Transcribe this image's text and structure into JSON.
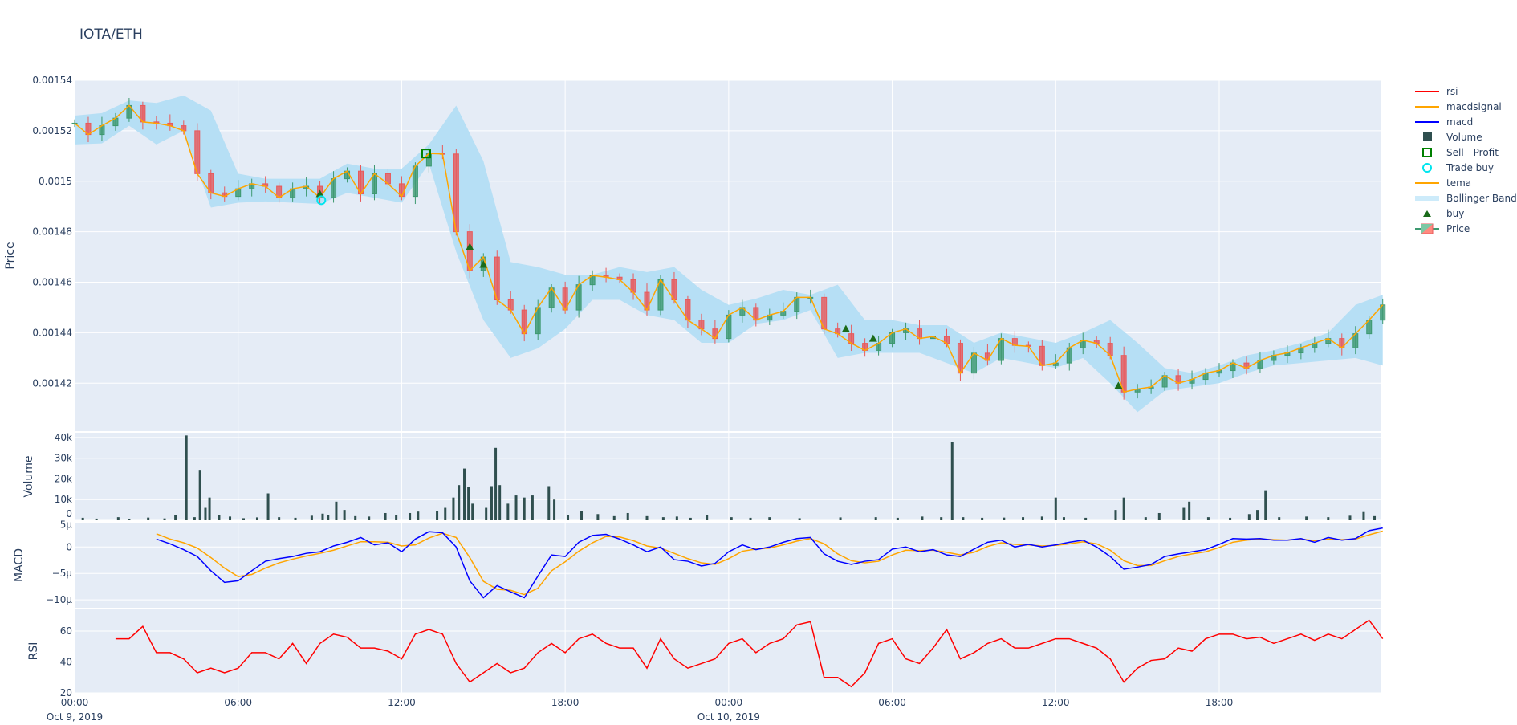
{
  "title": "IOTA/ETH",
  "colors": {
    "increasing": "#3D9970",
    "decreasing": "#E8595B",
    "tema": "#FFA500",
    "macd": "#0000FF",
    "macdsignal": "#FFA500",
    "rsi": "#FF0000",
    "volume": "#2F4F4F",
    "bollinger": "#B6DFF5",
    "buy": "#1A6B1A",
    "sell": "#008000",
    "trade_buy": "#00E5EE",
    "plot_bg": "#E5ECF6"
  },
  "legend": [
    {
      "label": "rsi",
      "icon": "line",
      "color": "#FF0000"
    },
    {
      "label": "macdsignal",
      "icon": "line",
      "color": "#FFA500"
    },
    {
      "label": "macd",
      "icon": "line",
      "color": "#0000FF"
    },
    {
      "label": "Volume",
      "icon": "square-filled",
      "color": "#2F4F4F"
    },
    {
      "label": "Sell - Profit",
      "icon": "square-open",
      "color": "#008000"
    },
    {
      "label": "Trade buy",
      "icon": "circle-open",
      "color": "#00E5EE"
    },
    {
      "label": "tema",
      "icon": "line",
      "color": "#FFA500"
    },
    {
      "label": "Bollinger Band",
      "icon": "band",
      "color": "#CDEBFA"
    },
    {
      "label": "buy",
      "icon": "triangle-up",
      "color": "#1A6B1A"
    },
    {
      "label": "Price",
      "icon": "candlestick",
      "color": "#3D9970"
    }
  ],
  "x_axis": {
    "start": "2019-10-09 00:00",
    "end": "2019-10-10 23:55",
    "ticks": [
      {
        "label": "00:00",
        "sub": "Oct 9, 2019",
        "hour": 0
      },
      {
        "label": "06:00",
        "sub": "",
        "hour": 6
      },
      {
        "label": "12:00",
        "sub": "",
        "hour": 12
      },
      {
        "label": "18:00",
        "sub": "",
        "hour": 18
      },
      {
        "label": "00:00",
        "sub": "Oct 10, 2019",
        "hour": 24
      },
      {
        "label": "06:00",
        "sub": "",
        "hour": 30
      },
      {
        "label": "12:00",
        "sub": "",
        "hour": 36
      },
      {
        "label": "18:00",
        "sub": "",
        "hour": 42
      }
    ]
  },
  "chart_data": [
    {
      "type": "candlestick",
      "ylabel": "Price",
      "ylim": [
        0.001401,
        0.00154
      ],
      "yticks": [
        "0.00142",
        "0.00144",
        "0.00146",
        "0.00148",
        "0.0015",
        "0.00152",
        "0.00154"
      ],
      "step_minutes": 30,
      "close": [
        0.001523,
        0.0015185,
        0.001522,
        0.001525,
        0.00153,
        0.0015235,
        0.001523,
        0.001522,
        0.00152,
        0.001503,
        0.0014954,
        0.001494,
        0.001497,
        0.001499,
        0.001498,
        0.0014935,
        0.001497,
        0.001498,
        0.0014935,
        0.001501,
        0.001504,
        0.001495,
        0.001503,
        0.001499,
        0.001494,
        0.001506,
        0.001511,
        0.0015108,
        0.00148,
        0.0014646,
        0.00147,
        0.001453,
        0.001449,
        0.0014396,
        0.00145,
        0.0014577,
        0.001449,
        0.001459,
        0.0014627,
        0.001462,
        0.001461,
        0.001456,
        0.001449,
        0.001461,
        0.001453,
        0.001445,
        0.0014415,
        0.0014377,
        0.001447,
        0.00145,
        0.001445,
        0.001447,
        0.0014485,
        0.001454,
        0.001454,
        0.0014415,
        0.0014396,
        0.0014358,
        0.001433,
        0.0014358,
        0.00144,
        0.0014415,
        0.0014377,
        0.0014385,
        0.0014358,
        0.001424,
        0.0014319,
        0.001429,
        0.0014377,
        0.001435,
        0.0014346,
        0.001427,
        0.001428,
        0.001434,
        0.001437,
        0.0014358,
        0.001431,
        0.0014165,
        0.0014177,
        0.0014185,
        0.001423,
        0.00142,
        0.0014215,
        0.001424,
        0.001425,
        0.001428,
        0.001426,
        0.001429,
        0.001431,
        0.001432,
        0.001434,
        0.0014358,
        0.0014377,
        0.001434,
        0.0014396,
        0.001445,
        0.001451
      ],
      "tema": [
        0.001523,
        0.0015185,
        0.001522,
        0.001525,
        0.00153,
        0.0015235,
        0.001523,
        0.001522,
        0.00152,
        0.001503,
        0.0014954,
        0.001494,
        0.001497,
        0.001499,
        0.001498,
        0.0014935,
        0.001497,
        0.001498,
        0.0014935,
        0.001501,
        0.001504,
        0.001495,
        0.001503,
        0.001499,
        0.001494,
        0.001506,
        0.001511,
        0.0015108,
        0.00148,
        0.0014646,
        0.00147,
        0.001453,
        0.001449,
        0.0014396,
        0.00145,
        0.0014577,
        0.001449,
        0.001459,
        0.0014627,
        0.001462,
        0.001461,
        0.001456,
        0.001449,
        0.001461,
        0.001453,
        0.001445,
        0.0014415,
        0.0014377,
        0.001447,
        0.00145,
        0.001445,
        0.001447,
        0.0014485,
        0.001454,
        0.001454,
        0.0014415,
        0.0014396,
        0.0014358,
        0.001433,
        0.0014358,
        0.00144,
        0.0014415,
        0.0014377,
        0.0014385,
        0.0014358,
        0.001424,
        0.0014319,
        0.001429,
        0.0014377,
        0.001435,
        0.0014346,
        0.001427,
        0.001428,
        0.001434,
        0.001437,
        0.0014358,
        0.001431,
        0.0014165,
        0.0014177,
        0.0014185,
        0.001423,
        0.00142,
        0.0014215,
        0.001424,
        0.001425,
        0.001428,
        0.001426,
        0.001429,
        0.001431,
        0.001432,
        0.001434,
        0.0014358,
        0.0014377,
        0.001434,
        0.0014396,
        0.001445,
        0.001451
      ],
      "bollinger_step_minutes": 60,
      "bb_upper": [
        0.001526,
        0.001527,
        0.001532,
        0.001531,
        0.001534,
        0.001528,
        0.001503,
        0.001501,
        0.001501,
        0.001501,
        0.001507,
        0.001505,
        0.001505,
        0.0015146,
        0.00153,
        0.001508,
        0.001468,
        0.001466,
        0.001463,
        0.001463,
        0.001466,
        0.001464,
        0.001466,
        0.001457,
        0.001451,
        0.0014535,
        0.001457,
        0.001455,
        0.001459,
        0.001445,
        0.001445,
        0.001443,
        0.001443,
        0.001436,
        0.00144,
        0.001438,
        0.001436,
        0.00144,
        0.001445,
        0.001436,
        0.001426,
        0.001424,
        0.001427,
        0.001431,
        0.001433,
        0.001436,
        0.00144,
        0.001451,
        0.001455
      ],
      "bb_lower": [
        0.0015146,
        0.001515,
        0.001522,
        0.0015146,
        0.00152,
        0.0014896,
        0.0014915,
        0.001492,
        0.0014915,
        0.001491,
        0.0014954,
        0.0014935,
        0.0014915,
        0.001507,
        0.001472,
        0.001445,
        0.00143,
        0.0014338,
        0.0014415,
        0.001453,
        0.001453,
        0.001447,
        0.001445,
        0.001436,
        0.001436,
        0.0014435,
        0.001445,
        0.001449,
        0.00143,
        0.001432,
        0.001432,
        0.001432,
        0.001428,
        0.001424,
        0.00143,
        0.001428,
        0.001426,
        0.00143,
        0.00142,
        0.0014085,
        0.001417,
        0.0014185,
        0.00142,
        0.001424,
        0.001427,
        0.001428,
        0.001429,
        0.00143,
        0.001427
      ],
      "buy": [
        [
          9.0,
          0.001495
        ],
        [
          14.5,
          0.001474
        ],
        [
          15.0,
          0.001467
        ],
        [
          28.3,
          0.0014415
        ],
        [
          29.3,
          0.0014377
        ],
        [
          38.3,
          0.001419
        ]
      ],
      "sell_profit": [
        [
          12.9,
          0.001511
        ]
      ],
      "trade_buy": [
        [
          9.05,
          0.0014925
        ]
      ]
    },
    {
      "type": "bar",
      "ylabel": "Volume",
      "ylim": [
        0,
        42300
      ],
      "yticks": [
        "0",
        "10k",
        "20k",
        "30k",
        "40k"
      ],
      "bars": [
        [
          0.3,
          1200
        ],
        [
          0.8,
          800
        ],
        [
          1.6,
          1500
        ],
        [
          2.0,
          700
        ],
        [
          2.7,
          1300
        ],
        [
          3.3,
          900
        ],
        [
          3.7,
          2600
        ],
        [
          4.1,
          41000
        ],
        [
          4.4,
          1500
        ],
        [
          4.6,
          24000
        ],
        [
          4.8,
          6000
        ],
        [
          4.95,
          11000
        ],
        [
          5.3,
          2500
        ],
        [
          5.7,
          1800
        ],
        [
          6.2,
          1000
        ],
        [
          6.7,
          1400
        ],
        [
          7.1,
          13000
        ],
        [
          7.5,
          1500
        ],
        [
          8.1,
          1200
        ],
        [
          8.7,
          2200
        ],
        [
          9.1,
          3200
        ],
        [
          9.3,
          2500
        ],
        [
          9.6,
          9000
        ],
        [
          9.9,
          5000
        ],
        [
          10.3,
          2000
        ],
        [
          10.8,
          1800
        ],
        [
          11.4,
          3500
        ],
        [
          11.8,
          2600
        ],
        [
          12.3,
          3500
        ],
        [
          12.6,
          4200
        ],
        [
          13.3,
          4500
        ],
        [
          13.6,
          6000
        ],
        [
          13.9,
          11000
        ],
        [
          14.1,
          17000
        ],
        [
          14.3,
          25000
        ],
        [
          14.45,
          16000
        ],
        [
          14.6,
          8000
        ],
        [
          15.1,
          6000
        ],
        [
          15.3,
          16500
        ],
        [
          15.45,
          35000
        ],
        [
          15.6,
          17000
        ],
        [
          15.9,
          8000
        ],
        [
          16.2,
          12000
        ],
        [
          16.5,
          11000
        ],
        [
          16.8,
          12000
        ],
        [
          17.4,
          16500
        ],
        [
          17.6,
          10000
        ],
        [
          18.1,
          2500
        ],
        [
          18.6,
          4500
        ],
        [
          19.2,
          3000
        ],
        [
          19.8,
          2000
        ],
        [
          20.3,
          3500
        ],
        [
          21.0,
          2000
        ],
        [
          21.6,
          1500
        ],
        [
          22.1,
          1800
        ],
        [
          22.6,
          1200
        ],
        [
          23.2,
          2500
        ],
        [
          24.1,
          1500
        ],
        [
          24.8,
          1200
        ],
        [
          25.5,
          1500
        ],
        [
          26.6,
          1000
        ],
        [
          28.1,
          1400
        ],
        [
          29.4,
          1500
        ],
        [
          30.2,
          1200
        ],
        [
          31.1,
          1800
        ],
        [
          31.8,
          1500
        ],
        [
          32.2,
          38000
        ],
        [
          32.6,
          1500
        ],
        [
          33.3,
          1200
        ],
        [
          34.1,
          1300
        ],
        [
          34.8,
          1500
        ],
        [
          35.5,
          1800
        ],
        [
          36.0,
          11000
        ],
        [
          36.3,
          1500
        ],
        [
          37.1,
          1200
        ],
        [
          38.2,
          5000
        ],
        [
          38.5,
          11000
        ],
        [
          39.3,
          1500
        ],
        [
          39.8,
          3500
        ],
        [
          40.7,
          6000
        ],
        [
          40.9,
          9000
        ],
        [
          41.6,
          1500
        ],
        [
          42.4,
          1200
        ],
        [
          43.1,
          3000
        ],
        [
          43.4,
          5000
        ],
        [
          43.7,
          14500
        ],
        [
          44.2,
          1500
        ],
        [
          45.2,
          1800
        ],
        [
          46.0,
          1500
        ],
        [
          46.8,
          2200
        ],
        [
          47.3,
          4000
        ],
        [
          47.7,
          2000
        ]
      ]
    },
    {
      "type": "line",
      "ylabel": "MACD",
      "ylim": [
        -11.5,
        4.6
      ],
      "unit": "µ",
      "yticks": [
        "−10µ",
        "−5µ",
        "0",
        "5µ"
      ],
      "x_start_hour": 3,
      "step_minutes": 30,
      "macd": [
        1.5,
        0.6,
        -0.5,
        -1.8,
        -4.5,
        -6.7,
        -6.4,
        -4.5,
        -2.7,
        -2.2,
        -1.8,
        -1.2,
        -0.9,
        0.2,
        0.9,
        1.8,
        0.4,
        0.8,
        -0.9,
        1.5,
        2.9,
        2.7,
        0,
        -6.4,
        -9.6,
        -7.3,
        -8.5,
        -9.6,
        -5.5,
        -1.5,
        -1.8,
        0.9,
        2.2,
        2.4,
        1.5,
        0.4,
        -0.9,
        0,
        -2.4,
        -2.7,
        -3.6,
        -3.1,
        -0.9,
        0.4,
        -0.5,
        0,
        0.9,
        1.6,
        1.8,
        -1.3,
        -2.7,
        -3.3,
        -2.7,
        -2.4,
        -0.4,
        0,
        -0.9,
        -0.5,
        -1.5,
        -1.8,
        -0.4,
        0.9,
        1.3,
        0,
        0.5,
        0,
        0.4,
        0.9,
        1.3,
        0,
        -1.8,
        -4.2,
        -3.8,
        -3.3,
        -1.8,
        -1.3,
        -0.9,
        -0.5,
        0.5,
        1.6,
        1.5,
        1.6,
        1.3,
        1.3,
        1.6,
        0.9,
        1.8,
        1.3,
        1.6,
        3.1,
        3.6
      ],
      "macdsignal": [
        2.5,
        1.5,
        0.8,
        -0.2,
        -2,
        -4,
        -5.6,
        -5.2,
        -4,
        -3,
        -2.3,
        -1.7,
        -1.2,
        -0.6,
        0.2,
        1,
        1,
        0.9,
        0.2,
        0.4,
        1.7,
        2.6,
        1.8,
        -2,
        -6.5,
        -8,
        -8.2,
        -9,
        -7.8,
        -4.5,
        -2.8,
        -0.8,
        0.8,
        2,
        1.9,
        1.2,
        0.2,
        -0.2,
        -1.2,
        -2.2,
        -3,
        -3.3,
        -2.2,
        -0.8,
        -0.4,
        -0.2,
        0.4,
        1.1,
        1.6,
        0.6,
        -1.3,
        -2.6,
        -3,
        -2.7,
        -1.5,
        -0.6,
        -0.7,
        -0.6,
        -1,
        -1.5,
        -1,
        0.1,
        0.8,
        0.5,
        0.4,
        0.2,
        0.3,
        0.6,
        1,
        0.6,
        -0.6,
        -2.6,
        -3.5,
        -3.5,
        -2.6,
        -1.8,
        -1.3,
        -0.9,
        -0.1,
        0.9,
        1.3,
        1.5,
        1.4,
        1.3,
        1.5,
        1.2,
        1.5,
        1.4,
        1.5,
        2.3,
        3
      ]
    },
    {
      "type": "line",
      "ylabel": "RSI",
      "ylim": [
        20,
        74
      ],
      "yticks": [
        "20",
        "40",
        "60"
      ],
      "x_start_hour": 1.5,
      "step_minutes": 30,
      "rsi": [
        55,
        55,
        63,
        46,
        46,
        42,
        33,
        36,
        33,
        36,
        46,
        46,
        42,
        52,
        39,
        52,
        58,
        56,
        49,
        49,
        47,
        42,
        58,
        61,
        58,
        39,
        27,
        33,
        39,
        33,
        36,
        46,
        52,
        46,
        55,
        58,
        52,
        49,
        49,
        36,
        55,
        42,
        36,
        39,
        42,
        52,
        55,
        46,
        52,
        55,
        64,
        66,
        30,
        30,
        24,
        33,
        52,
        55,
        42,
        39,
        49,
        61,
        42,
        46,
        52,
        55,
        49,
        49,
        52,
        55,
        55,
        52,
        49,
        42,
        27,
        36,
        41,
        42,
        49,
        47,
        55,
        58,
        58,
        55,
        56,
        52,
        55,
        58,
        54,
        58,
        55,
        61,
        67,
        55
      ]
    }
  ]
}
